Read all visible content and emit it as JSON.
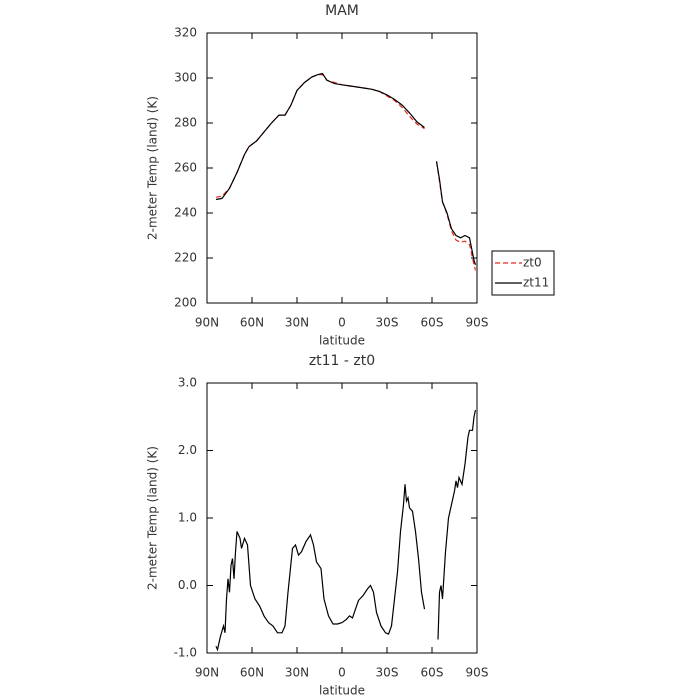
{
  "chart_data": [
    {
      "type": "line",
      "title": "MAM",
      "xlabel": "latitude",
      "ylabel": "2-meter Temp (land) (K)",
      "x": [
        84,
        80,
        75,
        70,
        65,
        62,
        57,
        52,
        47,
        42,
        38,
        34,
        30,
        25,
        20,
        16,
        13,
        10,
        5,
        0,
        -5,
        -10,
        -15,
        -20,
        -25,
        -30,
        -35,
        -40,
        -45,
        -50,
        -55,
        -60,
        -63,
        -65,
        -67,
        -70,
        -73,
        -76,
        -79,
        -82,
        -85,
        -88,
        -89
      ],
      "series": [
        {
          "name": "zt0",
          "color": "#e8291c",
          "style": "dashed",
          "values": [
            247,
            247.5,
            251,
            258,
            266,
            269.5,
            272,
            276,
            280,
            283.5,
            283.5,
            288,
            294.5,
            298,
            300.5,
            301.5,
            301.5,
            299,
            298,
            297,
            296.5,
            296,
            295.5,
            295,
            294,
            292,
            290,
            287,
            283,
            279.5,
            277.5,
            null,
            263,
            254,
            245,
            239.5,
            232,
            228,
            227,
            227.5,
            226,
            217,
            214.5
          ]
        },
        {
          "name": "zt11",
          "color": "#000000",
          "style": "solid",
          "values": [
            246,
            246.5,
            251,
            258,
            266,
            269.5,
            272,
            276,
            280,
            283.5,
            283.5,
            288,
            294.5,
            298,
            300.5,
            301.5,
            302,
            299,
            297.5,
            297,
            296.5,
            296,
            295.5,
            295,
            294,
            292.5,
            290.5,
            288,
            284.5,
            280.5,
            278,
            null,
            263,
            255,
            245,
            240,
            233,
            230,
            229,
            230,
            229,
            219,
            217
          ]
        }
      ],
      "xlim": [
        90,
        -90
      ],
      "xticks": [
        {
          "value": 90,
          "label": "90N"
        },
        {
          "value": 60,
          "label": "60N"
        },
        {
          "value": 30,
          "label": "30N"
        },
        0,
        {
          "value": -30,
          "label": "30S"
        },
        {
          "value": -60,
          "label": "60S"
        },
        {
          "value": -90,
          "label": "90S"
        }
      ],
      "ylim": [
        200,
        320
      ],
      "yticks": [
        200,
        220,
        240,
        260,
        280,
        300,
        320
      ],
      "legend": "right"
    },
    {
      "type": "line",
      "title": "zt11 - zt0",
      "xlabel": "latitude",
      "ylabel": "2-meter Temp (land) (K)",
      "x": [
        84,
        83,
        81,
        79,
        78,
        77,
        76,
        75,
        74,
        73,
        72,
        71,
        70,
        68,
        67,
        65,
        63,
        61,
        58,
        55,
        52,
        49,
        46,
        43,
        40,
        38,
        36,
        33,
        31,
        29,
        27,
        24,
        21,
        19,
        17,
        14,
        12,
        9,
        6,
        3,
        0,
        -3,
        -5,
        -7,
        -9,
        -11,
        -14,
        -17,
        -19,
        -21,
        -23,
        -26,
        -29,
        -31,
        -33,
        -35,
        -37,
        -39,
        -41,
        -42,
        -43,
        -44,
        -45,
        -47,
        -49,
        -51,
        -53,
        -55,
        -60,
        -64,
        -65,
        -66,
        -67,
        -69,
        -71,
        -73,
        -75,
        -76,
        -77,
        -78,
        -80,
        -82,
        -84,
        -85,
        -87,
        -88,
        -89
      ],
      "series": [
        {
          "name": "zt11 - zt0",
          "color": "#000000",
          "style": "solid",
          "values": [
            -0.9,
            -0.95,
            -0.75,
            -0.6,
            -0.7,
            -0.2,
            0.1,
            -0.1,
            0.3,
            0.4,
            0.1,
            0.5,
            0.8,
            0.7,
            0.55,
            0.7,
            0.6,
            0.0,
            -0.2,
            -0.3,
            -0.45,
            -0.55,
            -0.6,
            -0.7,
            -0.7,
            -0.6,
            -0.1,
            0.55,
            0.6,
            0.45,
            0.5,
            0.65,
            0.75,
            0.6,
            0.35,
            0.25,
            -0.2,
            -0.45,
            -0.57,
            -0.57,
            -0.55,
            -0.5,
            -0.45,
            -0.48,
            -0.35,
            -0.22,
            -0.15,
            -0.05,
            0.0,
            -0.1,
            -0.4,
            -0.6,
            -0.7,
            -0.72,
            -0.6,
            -0.2,
            0.2,
            0.8,
            1.2,
            1.5,
            1.25,
            1.3,
            1.15,
            1.1,
            0.8,
            0.4,
            -0.1,
            -0.35,
            null,
            -0.8,
            -0.1,
            0.0,
            -0.2,
            0.5,
            1.0,
            1.2,
            1.4,
            1.55,
            1.45,
            1.6,
            1.5,
            1.8,
            2.2,
            2.3,
            2.3,
            2.5,
            2.6
          ]
        }
      ],
      "xlim": [
        90,
        -90
      ],
      "xticks": [
        {
          "value": 90,
          "label": "90N"
        },
        {
          "value": 60,
          "label": "60N"
        },
        {
          "value": 30,
          "label": "30N"
        },
        0,
        {
          "value": -30,
          "label": "30S"
        },
        {
          "value": -60,
          "label": "60S"
        },
        {
          "value": -90,
          "label": "90S"
        }
      ],
      "ylim": [
        -1,
        3
      ],
      "yticks": [
        {
          "value": -1,
          "label": "-1.0"
        },
        {
          "value": 0,
          "label": "0.0"
        },
        {
          "value": 1,
          "label": "1.0"
        },
        {
          "value": 2,
          "label": "2.0"
        },
        {
          "value": 3,
          "label": "3.0"
        }
      ]
    }
  ]
}
